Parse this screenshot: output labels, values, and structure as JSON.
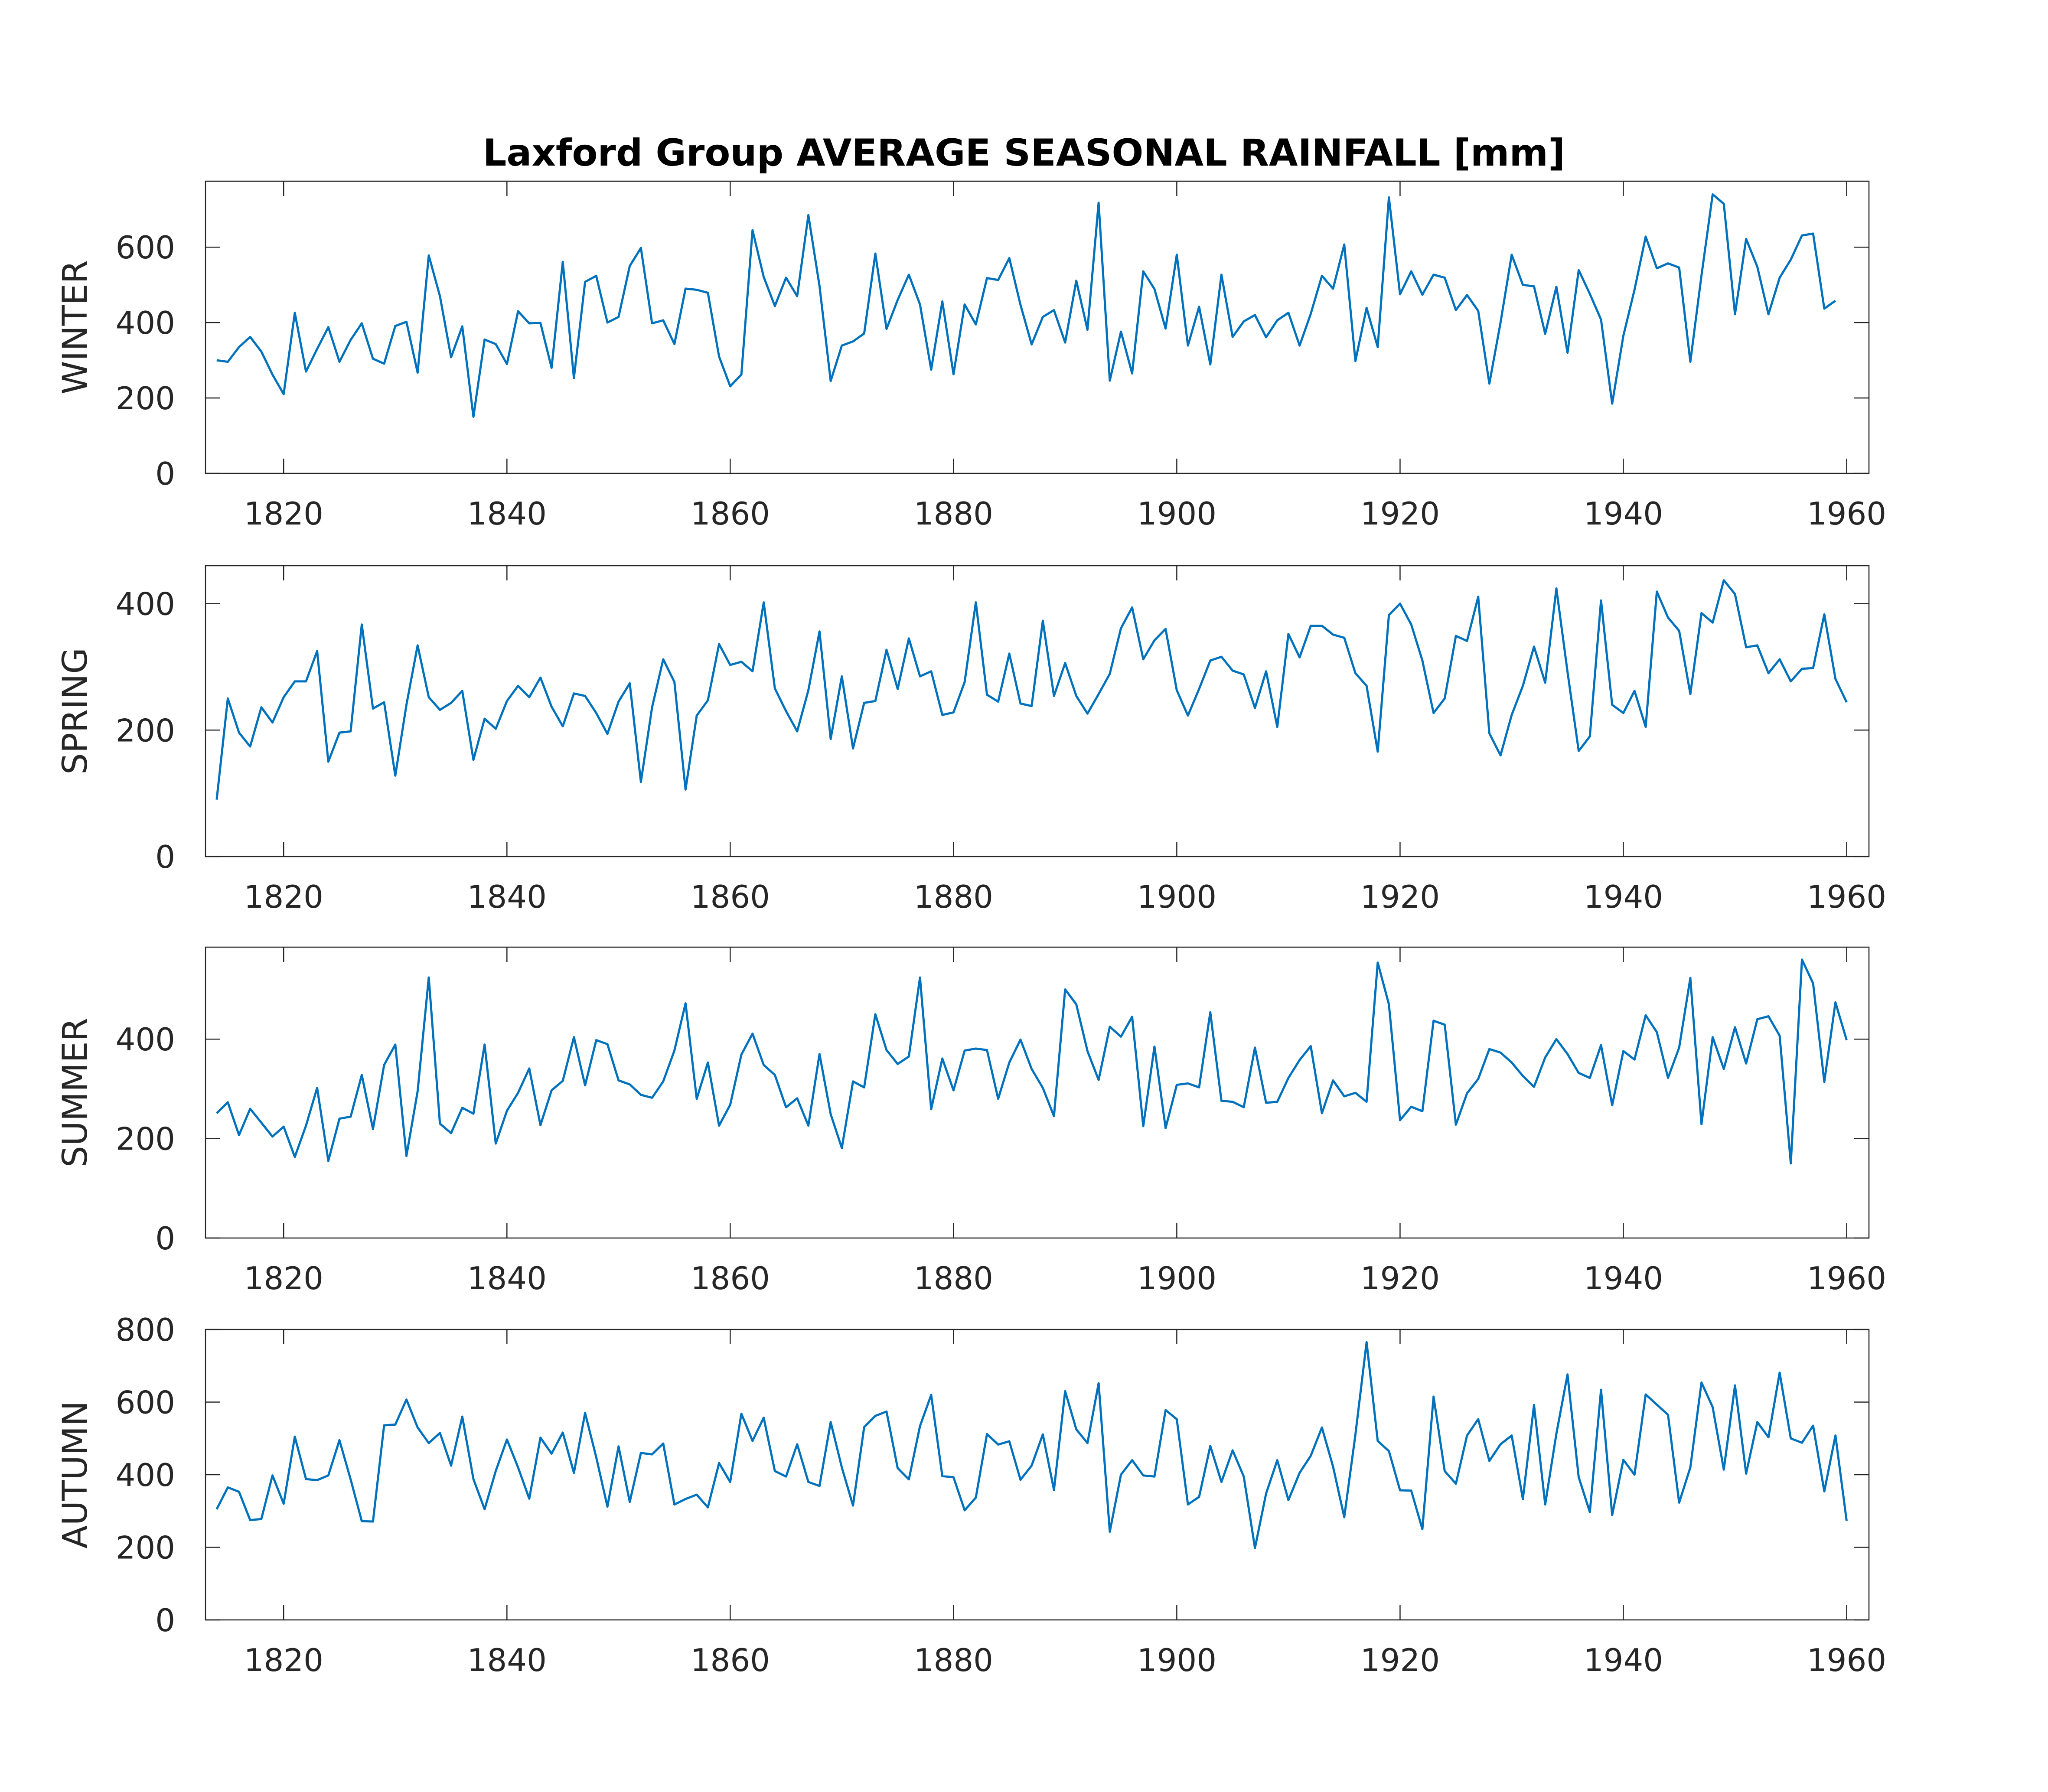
{
  "chart_data": {
    "type": "line",
    "title": "Laxford Group AVERAGE SEASONAL RAINFALL [mm]",
    "line_color": "#0072BD",
    "grid": false,
    "x_start": 1814,
    "xlim": [
      1813,
      1962
    ],
    "xticks": [
      1820,
      1840,
      1860,
      1880,
      1900,
      1920,
      1940,
      1960
    ],
    "panels": [
      {
        "ylabel": "WINTER",
        "ylim": [
          0,
          775
        ],
        "yticks": [
          0,
          200,
          400,
          600
        ],
        "values": [
          300,
          296,
          335,
          362,
          323,
          262,
          210,
          426,
          270,
          330,
          388,
          296,
          354,
          398,
          304,
          291,
          391,
          402,
          267,
          578,
          470,
          308,
          390,
          150,
          355,
          343,
          290,
          430,
          398,
          399,
          280,
          561,
          253,
          508,
          524,
          400,
          415,
          550,
          598,
          398,
          406,
          343,
          490,
          487,
          479,
          310,
          231,
          262,
          645,
          521,
          444,
          519,
          470,
          685,
          497,
          245,
          339,
          350,
          371,
          583,
          383,
          460,
          527,
          448,
          275,
          456,
          263,
          448,
          395,
          518,
          513,
          571,
          447,
          342,
          415,
          433,
          347,
          511,
          381,
          718,
          246,
          376,
          265,
          536,
          489,
          384,
          580,
          339,
          442,
          289,
          527,
          362,
          403,
          420,
          361,
          406,
          426,
          339,
          423,
          524,
          490,
          607,
          298,
          439,
          335,
          732,
          475,
          536,
          474,
          527,
          519,
          433,
          473,
          431,
          238,
          400,
          580,
          500,
          496,
          370,
          495,
          320,
          539,
          476,
          408,
          185,
          365,
          487,
          628,
          544,
          557,
          546,
          296,
          525,
          740,
          715,
          422,
          622,
          548,
          422,
          519,
          567,
          631,
          636,
          437,
          458
        ]
      },
      {
        "ylabel": "SPRING",
        "ylim": [
          0,
          460
        ],
        "yticks": [
          0,
          200,
          400
        ],
        "values": [
          90,
          250,
          196,
          174,
          236,
          212,
          252,
          277,
          277,
          325,
          150,
          196,
          198,
          367,
          234,
          244,
          128,
          240,
          334,
          252,
          232,
          243,
          262,
          153,
          218,
          202,
          246,
          270,
          252,
          283,
          237,
          206,
          258,
          254,
          227,
          194,
          245,
          274,
          118,
          236,
          312,
          276,
          106,
          223,
          247,
          336,
          303,
          308,
          293,
          402,
          266,
          230,
          198,
          263,
          356,
          186,
          285,
          171,
          243,
          246,
          327,
          265,
          345,
          285,
          293,
          224,
          228,
          276,
          402,
          256,
          245,
          321,
          242,
          238,
          373,
          254,
          306,
          254,
          226,
          257,
          289,
          361,
          394,
          312,
          342,
          360,
          263,
          223,
          265,
          310,
          316,
          294,
          288,
          235,
          293,
          205,
          352,
          315,
          365,
          365,
          351,
          346,
          290,
          270,
          166,
          382,
          400,
          367,
          310,
          227,
          250,
          349,
          341,
          411,
          195,
          160,
          224,
          270,
          332,
          275,
          424,
          292,
          167,
          190,
          405,
          240,
          227,
          262,
          205,
          419,
          378,
          357,
          257,
          385,
          370,
          437,
          415,
          331,
          334,
          290,
          312,
          277,
          297,
          298,
          383,
          281,
          244
        ]
      },
      {
        "ylabel": "SUMMER",
        "ylim": [
          0,
          585
        ],
        "yticks": [
          0,
          200,
          400
        ],
        "values": [
          251,
          273,
          207,
          260,
          232,
          204,
          224,
          163,
          226,
          302,
          155,
          240,
          244,
          328,
          219,
          348,
          389,
          165,
          295,
          524,
          230,
          211,
          262,
          250,
          389,
          190,
          256,
          292,
          341,
          227,
          297,
          316,
          404,
          307,
          398,
          390,
          317,
          309,
          288,
          282,
          315,
          377,
          472,
          280,
          353,
          226,
          268,
          369,
          411,
          348,
          328,
          263,
          281,
          226,
          370,
          249,
          181,
          315,
          303,
          450,
          378,
          350,
          365,
          524,
          259,
          361,
          297,
          377,
          381,
          378,
          280,
          353,
          399,
          340,
          302,
          245,
          500,
          470,
          376,
          318,
          425,
          405,
          445,
          225,
          385,
          221,
          308,
          311,
          303,
          454,
          276,
          274,
          263,
          383,
          272,
          274,
          322,
          358,
          386,
          251,
          317,
          285,
          292,
          274,
          554,
          470,
          237,
          264,
          255,
          437,
          429,
          228,
          291,
          320,
          380,
          373,
          353,
          326,
          304,
          363,
          400,
          370,
          332,
          322,
          388,
          267,
          376,
          359,
          448,
          414,
          322,
          383,
          523,
          229,
          404,
          340,
          424,
          351,
          440,
          446,
          407,
          150,
          560,
          512,
          314,
          474,
          398
        ]
      },
      {
        "ylabel": "AUTUMN",
        "ylim": [
          0,
          800
        ],
        "yticks": [
          0,
          200,
          400,
          600,
          800
        ],
        "values": [
          305,
          365,
          353,
          275,
          278,
          398,
          320,
          505,
          388,
          385,
          398,
          495,
          387,
          272,
          271,
          536,
          538,
          607,
          530,
          487,
          515,
          425,
          560,
          388,
          305,
          410,
          497,
          420,
          334,
          502,
          458,
          516,
          405,
          570,
          448,
          312,
          478,
          325,
          460,
          456,
          486,
          318,
          333,
          345,
          310,
          432,
          380,
          568,
          493,
          557,
          410,
          395,
          484,
          380,
          369,
          545,
          420,
          315,
          531,
          562,
          574,
          418,
          387,
          534,
          620,
          396,
          393,
          302,
          337,
          512,
          483,
          492,
          386,
          425,
          511,
          358,
          630,
          525,
          487,
          652,
          243,
          400,
          440,
          398,
          395,
          578,
          553,
          318,
          339,
          479,
          380,
          467,
          395,
          198,
          348,
          440,
          330,
          405,
          452,
          530,
          422,
          283,
          510,
          765,
          493,
          465,
          357,
          356,
          250,
          615,
          410,
          375,
          508,
          553,
          438,
          484,
          508,
          333,
          592,
          318,
          513,
          676,
          393,
          297,
          634,
          289,
          441,
          400,
          621,
          593,
          565,
          323,
          420,
          654,
          586,
          414,
          646,
          403,
          545,
          503,
          681,
          500,
          488,
          535,
          354,
          508,
          273
        ]
      }
    ]
  }
}
